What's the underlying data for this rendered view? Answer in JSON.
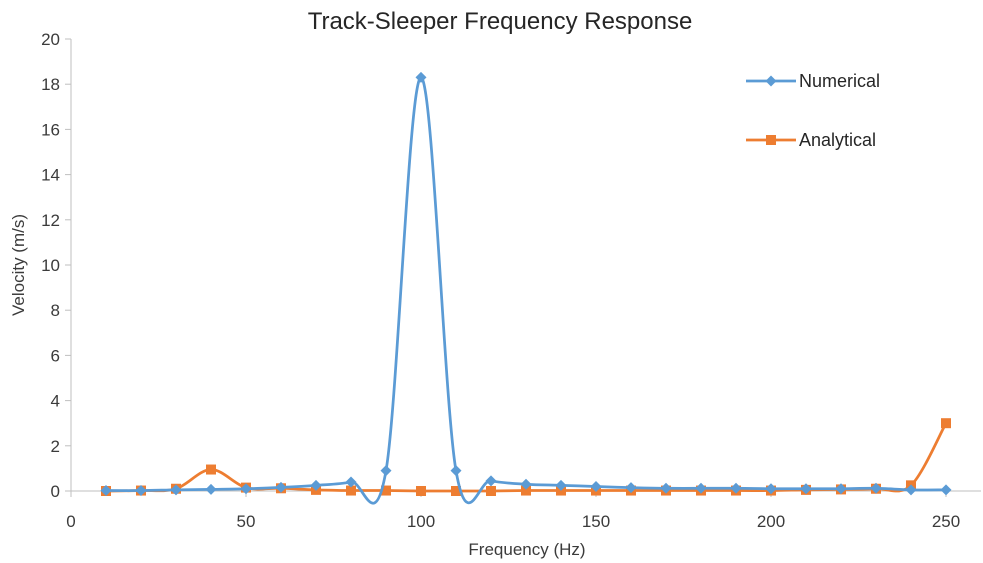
{
  "chart_data": {
    "type": "line",
    "title": "Track-Sleeper Frequency Response",
    "xlabel": "Frequency (Hz)",
    "ylabel": "Velocity (m/s)",
    "xlim": [
      0,
      260
    ],
    "ylim": [
      0,
      20
    ],
    "x_ticks": [
      "0",
      "50",
      "100",
      "150",
      "200",
      "250"
    ],
    "y_ticks": [
      "0",
      "2",
      "4",
      "6",
      "8",
      "10",
      "12",
      "14",
      "16",
      "18",
      "20"
    ],
    "grid": false,
    "smooth": true,
    "legend_position": "top-right",
    "x": [
      10,
      20,
      30,
      40,
      50,
      60,
      70,
      80,
      90,
      100,
      110,
      120,
      130,
      140,
      150,
      160,
      170,
      180,
      190,
      200,
      210,
      220,
      230,
      240,
      250
    ],
    "series": [
      {
        "name": "Numerical",
        "color": "#5b9bd5",
        "marker": "diamond",
        "values": [
          0.02,
          0.02,
          0.05,
          0.07,
          0.1,
          0.16,
          0.25,
          0.4,
          0.9,
          18.3,
          0.9,
          0.45,
          0.3,
          0.25,
          0.2,
          0.15,
          0.12,
          0.12,
          0.12,
          0.1,
          0.1,
          0.1,
          0.12,
          0.05,
          0.05
        ]
      },
      {
        "name": "Analytical",
        "color": "#ed7d31",
        "marker": "square",
        "values": [
          0.0,
          0.02,
          0.1,
          0.95,
          0.15,
          0.12,
          0.05,
          0.02,
          0.02,
          0.0,
          0.0,
          0.0,
          0.02,
          0.02,
          0.02,
          0.02,
          0.02,
          0.02,
          0.02,
          0.02,
          0.05,
          0.07,
          0.1,
          0.25,
          3.0
        ]
      }
    ]
  }
}
